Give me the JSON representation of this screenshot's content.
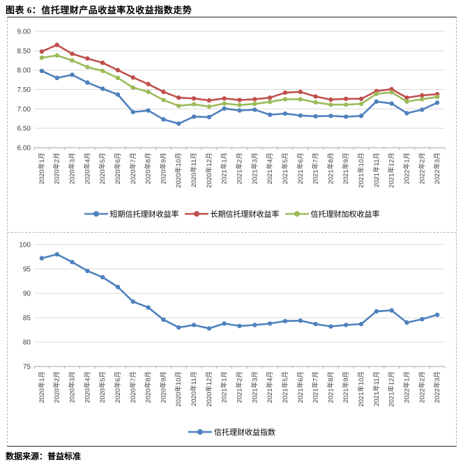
{
  "header": {
    "title": "图表 6：信托理财产品收益率及收益指数走势"
  },
  "footer": {
    "source": "数据来源：普益标准"
  },
  "colors": {
    "short_term_blue": "#4F81BD",
    "long_term_red": "#C0504D",
    "weighted_green": "#9BBB59",
    "gridline": "#D9D9D9",
    "axis": "#A6A6A6",
    "tick_text": "#404040"
  },
  "chart_data": [
    {
      "type": "line",
      "title": "",
      "categories": [
        "2020年1月",
        "2020年2月",
        "2020年3月",
        "2020年4月",
        "2020年5月",
        "2020年6月",
        "2020年7月",
        "2020年8月",
        "2020年9月",
        "2020年10月",
        "2020年11月",
        "2020年12月",
        "2021年1月",
        "2021年2月",
        "2021年3月",
        "2021年4月",
        "2021年5月",
        "2021年6月",
        "2021年7月",
        "2021年8月",
        "2021年9月",
        "2021年10月",
        "2021年11月",
        "2021年12月",
        "2022年1月",
        "2022年2月",
        "2022年3月"
      ],
      "series": [
        {
          "name": "短期信托理财收益率",
          "color": "#4F81BD",
          "values": [
            7.98,
            7.8,
            7.88,
            7.68,
            7.52,
            7.37,
            6.92,
            6.96,
            6.73,
            6.62,
            6.8,
            6.79,
            7.01,
            6.96,
            6.98,
            6.85,
            6.88,
            6.83,
            6.81,
            6.82,
            6.8,
            6.82,
            7.19,
            7.14,
            6.89,
            6.98,
            7.16
          ]
        },
        {
          "name": "长期信托理财收益率",
          "color": "#C0504D",
          "values": [
            8.48,
            8.65,
            8.42,
            8.3,
            8.19,
            8.0,
            7.81,
            7.64,
            7.44,
            7.29,
            7.27,
            7.22,
            7.27,
            7.23,
            7.25,
            7.29,
            7.42,
            7.44,
            7.32,
            7.24,
            7.26,
            7.26,
            7.46,
            7.51,
            7.29,
            7.35,
            7.38
          ]
        },
        {
          "name": "信托理财加权收益率",
          "color": "#9BBB59",
          "values": [
            8.32,
            8.38,
            8.25,
            8.08,
            7.98,
            7.8,
            7.55,
            7.44,
            7.23,
            7.08,
            7.12,
            7.06,
            7.14,
            7.1,
            7.13,
            7.18,
            7.25,
            7.25,
            7.17,
            7.11,
            7.11,
            7.13,
            7.39,
            7.43,
            7.19,
            7.25,
            7.31
          ]
        }
      ],
      "xlabel": "",
      "ylabel": "",
      "ylim": [
        6.0,
        9.0
      ],
      "ystep": 0.5,
      "yticks": [
        "6.00",
        "6.50",
        "7.00",
        "7.50",
        "8.00",
        "8.50",
        "9.00"
      ],
      "grid": true,
      "legend_position": "bottom"
    },
    {
      "type": "line",
      "title": "",
      "categories": [
        "2020年1月",
        "2020年2月",
        "2020年3月",
        "2020年4月",
        "2020年5月",
        "2020年6月",
        "2020年7月",
        "2020年8月",
        "2020年9月",
        "2020年10月",
        "2020年11月",
        "2020年12月",
        "2021年1月",
        "2021年2月",
        "2021年3月",
        "2021年4月",
        "2021年5月",
        "2021年6月",
        "2021年7月",
        "2021年8月",
        "2021年9月",
        "2021年10月",
        "2021年11月",
        "2021年12月",
        "2022年1月",
        "2022年2月",
        "2022年3月"
      ],
      "series": [
        {
          "name": "信托理财收益指数",
          "color": "#4F81BD",
          "values": [
            97.2,
            98.0,
            96.4,
            94.6,
            93.3,
            91.3,
            88.3,
            87.1,
            84.6,
            83.0,
            83.5,
            82.8,
            83.8,
            83.3,
            83.5,
            83.8,
            84.3,
            84.4,
            83.7,
            83.2,
            83.5,
            83.7,
            86.3,
            86.5,
            84.0,
            84.7,
            85.6
          ]
        }
      ],
      "xlabel": "",
      "ylabel": "",
      "ylim": [
        75,
        100
      ],
      "ystep": 5,
      "yticks": [
        "75",
        "80",
        "85",
        "90",
        "95",
        "100"
      ],
      "grid": true,
      "legend_position": "bottom"
    }
  ]
}
